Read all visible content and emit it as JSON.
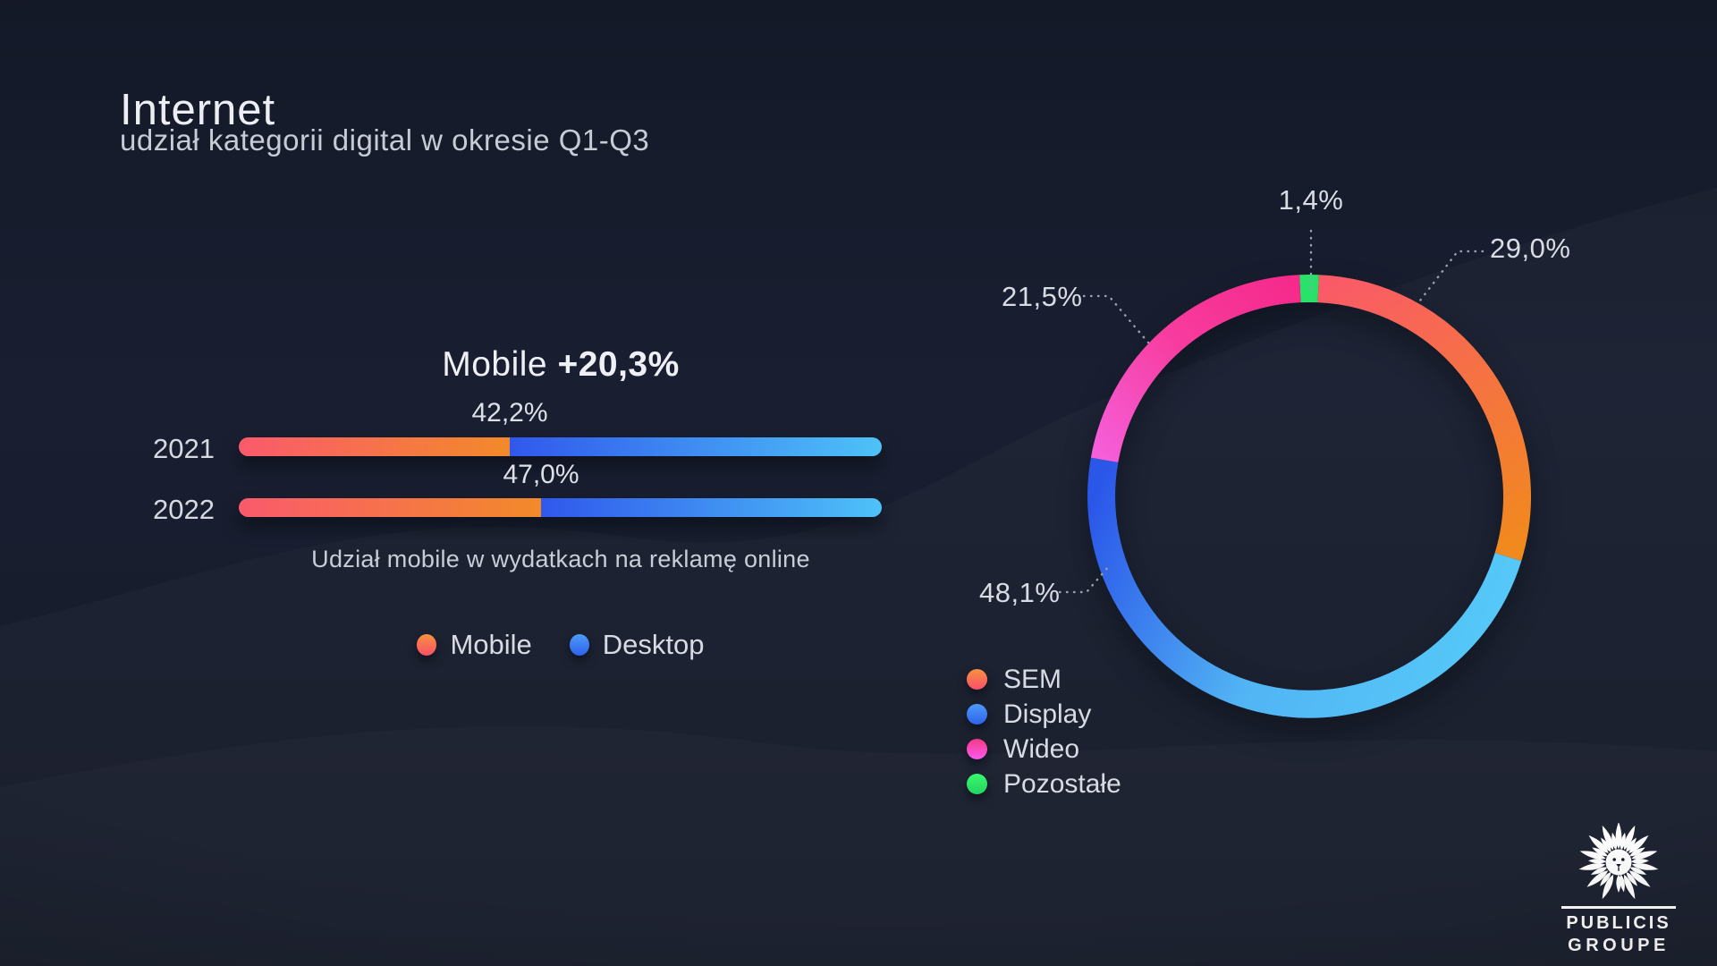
{
  "header": {
    "title": "Internet",
    "subtitle": "udział kategorii digital w okresie Q1-Q3"
  },
  "mobile_chart": {
    "heading": {
      "prefix": "Mobile",
      "delta": "+20,3%"
    },
    "rows": [
      {
        "year": "2021",
        "value_label": "42,2%"
      },
      {
        "year": "2022",
        "value_label": "47,0%"
      }
    ],
    "caption": "Udział mobile w wydatkach na reklamę online",
    "legend": [
      {
        "label": "Mobile"
      },
      {
        "label": "Desktop"
      }
    ]
  },
  "donut_chart": {
    "labels": {
      "sem": "29,0%",
      "display": "48,1%",
      "wideo": "21,5%",
      "pozostale": "1,4%"
    },
    "legend": [
      {
        "label": "SEM"
      },
      {
        "label": "Display"
      },
      {
        "label": "Wideo"
      },
      {
        "label": "Pozostałe"
      }
    ]
  },
  "logo": {
    "line1": "PUBLICIS",
    "line2": "GROUPE"
  },
  "colors": {
    "background": "#171c2c",
    "text_primary": "#eceef4",
    "text_secondary": "#c7cbd6",
    "leader_line": "#9aa1af",
    "mobile_gradient": [
      "#fa5a6c",
      "#f28a2a"
    ],
    "desktop_gradient": [
      "#3058ec",
      "#4ec2f8"
    ],
    "sem_gradient": [
      "#fa5a68",
      "#f18a1d"
    ],
    "display_gradient": [
      "#55c8f8",
      "#52b4f4",
      "#2b57e9"
    ],
    "wideo_gradient": [
      "#f55fd9",
      "#f73c9f",
      "#f62a8b"
    ],
    "pozostale_gradient": [
      "#2ce46c",
      "#27de66"
    ],
    "dots": {
      "mobile": [
        "#f79140",
        "#fa4f68"
      ],
      "desktop": [
        "#4d9bf8",
        "#2d63ec"
      ],
      "sem": [
        "#f79140",
        "#fa4f68"
      ],
      "display": [
        "#4d9bf8",
        "#2d63ec"
      ],
      "wideo": [
        "#f43a85",
        "#fb59f0"
      ],
      "pozostale": [
        "#38f96e",
        "#24d360"
      ]
    }
  },
  "chart_data": [
    {
      "type": "bar",
      "subtype": "horizontal-stacked",
      "title": "Mobile +20,3%",
      "caption": "Udział mobile w wydatkach na reklamę online",
      "categories": [
        "2021",
        "2022"
      ],
      "series": [
        {
          "name": "Mobile",
          "values": [
            42.2,
            47.0
          ]
        },
        {
          "name": "Desktop",
          "values": [
            57.8,
            53.0
          ]
        }
      ],
      "value_labels": [
        "42,2%",
        "47,0%"
      ],
      "unit": "%",
      "xlim": [
        0,
        100
      ],
      "legend_position": "bottom"
    },
    {
      "type": "pie",
      "subtype": "donut",
      "title": "udział kategorii digital w okresie Q1-Q3",
      "categories": [
        "SEM",
        "Display",
        "Wideo",
        "Pozostałe"
      ],
      "values": [
        29.0,
        48.1,
        21.5,
        1.4
      ],
      "labels": [
        "29,0%",
        "48,1%",
        "21,5%",
        "1,4%"
      ],
      "unit": "%",
      "gradient_ids": [
        "sem",
        "display",
        "wideo",
        "pozostale"
      ],
      "draw_order": [
        3,
        0,
        1,
        2
      ],
      "rotation_deg": -2.52,
      "legend_position": "bottom-left"
    }
  ]
}
